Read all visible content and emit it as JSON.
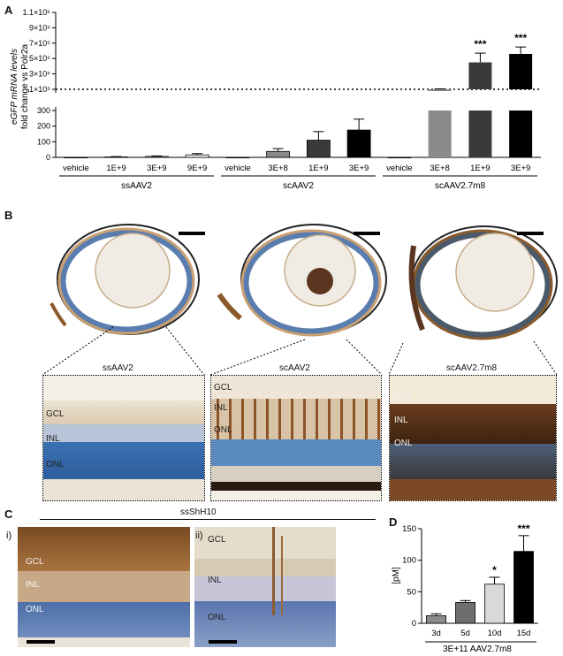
{
  "panels": {
    "A": "A",
    "B": "B",
    "C": "C",
    "D": "D"
  },
  "chart_a": {
    "type": "bar",
    "ylabel_line1": "eGFP mRNA levels",
    "ylabel_line2": "fold change vs Polr2a",
    "upper_ticks": [
      "1.1×10⁶",
      "9×10⁵",
      "7×10⁵",
      "5×10⁵",
      "3×10⁵",
      "1×10⁵"
    ],
    "lower_ticks": [
      "300",
      "200",
      "100",
      "0"
    ],
    "categories": [
      "vehicle",
      "1E+9",
      "3E+9",
      "9E+9",
      "vehicle",
      "3E+8",
      "1E+9",
      "3E+9",
      "vehicle",
      "3E+8",
      "1E+9",
      "3E+9"
    ],
    "groups": [
      {
        "label": "ssAAV2",
        "from": 0,
        "to": 3
      },
      {
        "label": "scAAV2",
        "from": 4,
        "to": 7
      },
      {
        "label": "scAAV2.7m8",
        "from": 8,
        "to": 11
      }
    ],
    "values": [
      0,
      3,
      6,
      16,
      0,
      38,
      110,
      175,
      0,
      100000,
      450000,
      560000
    ],
    "errors": [
      0,
      2,
      3,
      8,
      0,
      18,
      55,
      70,
      0,
      5000,
      120000,
      90000
    ],
    "colors": [
      "#ffffff",
      "#ffffff",
      "#ffffff",
      "#ffffff",
      "#ffffff",
      "#8a8a8a",
      "#3a3a3a",
      "#000000",
      "#ffffff",
      "#8a8a8a",
      "#3a3a3a",
      "#000000"
    ],
    "significance": [
      "",
      "",
      "",
      "",
      "",
      "",
      "",
      "",
      "",
      "",
      "***",
      "***"
    ],
    "reference_line": 100000
  },
  "panel_b": {
    "titles": [
      "ssAAV2",
      "scAAV2",
      "scAAV2.7m8"
    ],
    "layers": [
      "GCL",
      "INL",
      "ONL"
    ]
  },
  "panel_c": {
    "title": "ssShH10",
    "sub_i": "i)",
    "sub_ii": "ii)",
    "layers": [
      "GCL",
      "INL",
      "ONL"
    ]
  },
  "chart_d": {
    "type": "bar",
    "ylabel": "[pM]",
    "yticks": [
      "0",
      "50",
      "100",
      "150"
    ],
    "categories": [
      "3d",
      "5d",
      "10d",
      "15d"
    ],
    "values": [
      12,
      33,
      62,
      114
    ],
    "errors": [
      3,
      3,
      11,
      25
    ],
    "colors": [
      "#8c8c8c",
      "#6e6e6e",
      "#d9d9d9",
      "#000000"
    ],
    "significance": [
      "",
      "",
      "*",
      "***"
    ],
    "xlabel": "3E+11 AAV2.7m8",
    "ylim": [
      0,
      150
    ]
  }
}
